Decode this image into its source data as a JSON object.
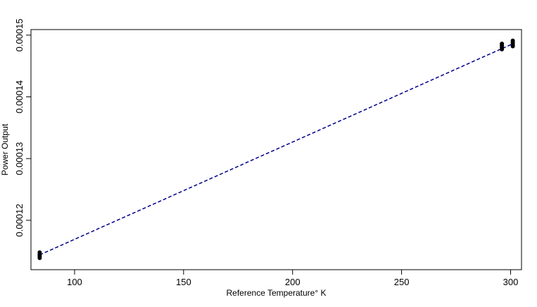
{
  "chart_data": {
    "type": "scatter",
    "title": "",
    "xlabel": "Reference Temperature° K",
    "ylabel": "Power Output",
    "xlim": [
      80,
      305
    ],
    "ylim": [
      0.000112,
      0.0001509
    ],
    "x_ticks": [
      100,
      150,
      200,
      250,
      300
    ],
    "x_tick_labels": [
      "100",
      "150",
      "200",
      "250",
      "300"
    ],
    "y_ticks": [
      0.00012,
      0.00013,
      0.00014,
      0.00015
    ],
    "y_tick_labels": [
      "0.00012",
      "0.00013",
      "0.00014",
      "0.00015"
    ],
    "grid": false,
    "colors": {
      "points": "#000000",
      "fit_line": "#00008b",
      "frame": "#000000"
    },
    "series": [
      {
        "values": [
          {
            "x": 84,
            "y": 0.0001139
          },
          {
            "x": 84,
            "y": 0.0001142
          },
          {
            "x": 84,
            "y": 0.0001145
          },
          {
            "x": 84,
            "y": 0.0001148
          },
          {
            "x": 296,
            "y": 0.0001477
          },
          {
            "x": 296,
            "y": 0.000148
          },
          {
            "x": 296,
            "y": 0.0001483
          },
          {
            "x": 296,
            "y": 0.0001486
          },
          {
            "x": 301,
            "y": 0.0001482
          },
          {
            "x": 301,
            "y": 0.0001485
          },
          {
            "x": 301,
            "y": 0.0001488
          },
          {
            "x": 301,
            "y": 0.0001491
          }
        ]
      }
    ],
    "fit_line": {
      "style": "dashed",
      "points": [
        {
          "x": 84,
          "y": 0.0001144
        },
        {
          "x": 301,
          "y": 0.0001486
        }
      ]
    }
  }
}
